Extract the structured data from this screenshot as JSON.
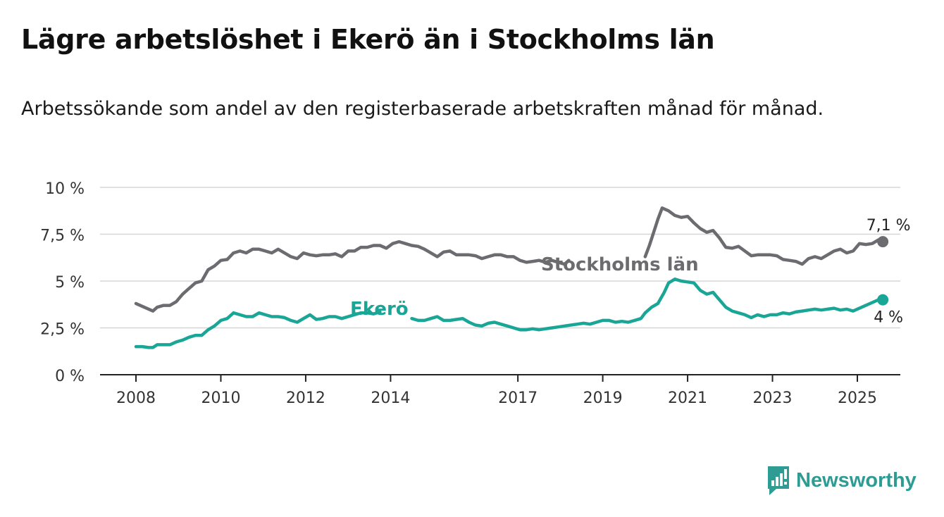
{
  "header": {
    "title": "Lägre arbetslöshet i Ekerö än i Stockholms län",
    "subtitle": "Arbetssökande som andel av den registerbaserade arbetskraften månad för månad."
  },
  "brand": {
    "name": "Newsworthy",
    "icon": "bar-chart-bubble-icon",
    "color": "#2e9c92"
  },
  "chart_data": {
    "type": "line",
    "xlabel": "",
    "ylabel": "",
    "xlim": [
      2007.9,
      2026.0
    ],
    "ylim": [
      0,
      10
    ],
    "grid": true,
    "x_ticks": [
      {
        "value": 2008,
        "label": "2008"
      },
      {
        "value": 2010,
        "label": "2010"
      },
      {
        "value": 2012,
        "label": "2012"
      },
      {
        "value": 2014,
        "label": "2014"
      },
      {
        "value": 2017,
        "label": "2017"
      },
      {
        "value": 2019,
        "label": "2019"
      },
      {
        "value": 2021,
        "label": "2021"
      },
      {
        "value": 2023,
        "label": "2023"
      },
      {
        "value": 2025,
        "label": "2025"
      }
    ],
    "y_ticks": [
      {
        "value": 0,
        "label": "0 %"
      },
      {
        "value": 2.5,
        "label": "2,5 %"
      },
      {
        "value": 5,
        "label": "5 %"
      },
      {
        "value": 7.5,
        "label": "7,5 %"
      },
      {
        "value": 10,
        "label": "10 %"
      }
    ],
    "series": [
      {
        "name": "Stockholms län",
        "color": "#6b6b70",
        "end_label": "7,1 %",
        "points": [
          [
            2008.0,
            3.8
          ],
          [
            2008.15,
            3.65
          ],
          [
            2008.3,
            3.5
          ],
          [
            2008.4,
            3.4
          ],
          [
            2008.5,
            3.6
          ],
          [
            2008.65,
            3.7
          ],
          [
            2008.8,
            3.7
          ],
          [
            2008.95,
            3.9
          ],
          [
            2009.1,
            4.3
          ],
          [
            2009.25,
            4.6
          ],
          [
            2009.4,
            4.9
          ],
          [
            2009.55,
            5.0
          ],
          [
            2009.7,
            5.6
          ],
          [
            2009.85,
            5.8
          ],
          [
            2010.0,
            6.1
          ],
          [
            2010.15,
            6.15
          ],
          [
            2010.3,
            6.5
          ],
          [
            2010.45,
            6.6
          ],
          [
            2010.6,
            6.5
          ],
          [
            2010.75,
            6.7
          ],
          [
            2010.9,
            6.7
          ],
          [
            2011.05,
            6.6
          ],
          [
            2011.2,
            6.5
          ],
          [
            2011.35,
            6.7
          ],
          [
            2011.5,
            6.5
          ],
          [
            2011.65,
            6.3
          ],
          [
            2011.8,
            6.2
          ],
          [
            2011.95,
            6.5
          ],
          [
            2012.1,
            6.4
          ],
          [
            2012.25,
            6.35
          ],
          [
            2012.4,
            6.4
          ],
          [
            2012.55,
            6.4
          ],
          [
            2012.7,
            6.45
          ],
          [
            2012.85,
            6.3
          ],
          [
            2013.0,
            6.6
          ],
          [
            2013.15,
            6.6
          ],
          [
            2013.3,
            6.8
          ],
          [
            2013.45,
            6.8
          ],
          [
            2013.6,
            6.9
          ],
          [
            2013.75,
            6.9
          ],
          [
            2013.9,
            6.75
          ],
          [
            2014.05,
            7.0
          ],
          [
            2014.2,
            7.1
          ],
          [
            2014.35,
            7.0
          ],
          [
            2014.5,
            6.9
          ],
          [
            2014.65,
            6.85
          ],
          [
            2014.8,
            6.7
          ],
          [
            2014.95,
            6.5
          ],
          [
            2015.1,
            6.3
          ],
          [
            2015.25,
            6.55
          ],
          [
            2015.4,
            6.6
          ],
          [
            2015.55,
            6.4
          ],
          [
            2015.7,
            6.4
          ],
          [
            2015.85,
            6.4
          ],
          [
            2016.0,
            6.35
          ],
          [
            2016.15,
            6.2
          ],
          [
            2016.3,
            6.3
          ],
          [
            2016.45,
            6.4
          ],
          [
            2016.6,
            6.4
          ],
          [
            2016.75,
            6.3
          ],
          [
            2016.9,
            6.3
          ],
          [
            2017.05,
            6.1
          ],
          [
            2017.2,
            6.0
          ],
          [
            2017.35,
            6.05
          ],
          [
            2017.5,
            6.1
          ],
          [
            2017.65,
            6.0
          ],
          [
            2017.8,
            6.1
          ],
          [
            2017.95,
            6.0
          ],
          [
            2018.1,
            5.9
          ],
          [
            2018.2,
            6.1
          ]
        ],
        "points_b": [
          [
            2020.0,
            6.3
          ],
          [
            2020.1,
            6.9
          ],
          [
            2020.2,
            7.6
          ],
          [
            2020.3,
            8.3
          ],
          [
            2020.4,
            8.9
          ],
          [
            2020.55,
            8.75
          ],
          [
            2020.7,
            8.5
          ],
          [
            2020.85,
            8.4
          ],
          [
            2021.0,
            8.45
          ],
          [
            2021.15,
            8.1
          ],
          [
            2021.3,
            7.8
          ],
          [
            2021.45,
            7.6
          ],
          [
            2021.6,
            7.7
          ],
          [
            2021.75,
            7.3
          ],
          [
            2021.9,
            6.8
          ],
          [
            2022.05,
            6.75
          ],
          [
            2022.2,
            6.85
          ],
          [
            2022.35,
            6.6
          ],
          [
            2022.5,
            6.35
          ],
          [
            2022.65,
            6.4
          ],
          [
            2022.8,
            6.4
          ],
          [
            2022.95,
            6.4
          ],
          [
            2023.1,
            6.35
          ],
          [
            2023.25,
            6.15
          ],
          [
            2023.4,
            6.1
          ],
          [
            2023.55,
            6.05
          ],
          [
            2023.7,
            5.9
          ],
          [
            2023.85,
            6.2
          ],
          [
            2024.0,
            6.3
          ],
          [
            2024.15,
            6.2
          ],
          [
            2024.3,
            6.4
          ],
          [
            2024.45,
            6.6
          ],
          [
            2024.6,
            6.7
          ],
          [
            2024.75,
            6.5
          ],
          [
            2024.9,
            6.6
          ],
          [
            2025.05,
            7.0
          ],
          [
            2025.2,
            6.95
          ],
          [
            2025.35,
            7.0
          ],
          [
            2025.5,
            7.2
          ],
          [
            2025.6,
            7.1
          ]
        ]
      },
      {
        "name": "Ekerö",
        "color": "#1aa697",
        "end_label": "4 %",
        "points": [
          [
            2008.0,
            1.5
          ],
          [
            2008.15,
            1.5
          ],
          [
            2008.3,
            1.45
          ],
          [
            2008.4,
            1.45
          ],
          [
            2008.5,
            1.6
          ],
          [
            2008.65,
            1.6
          ],
          [
            2008.8,
            1.6
          ],
          [
            2008.95,
            1.75
          ],
          [
            2009.1,
            1.85
          ],
          [
            2009.25,
            2.0
          ],
          [
            2009.4,
            2.1
          ],
          [
            2009.55,
            2.1
          ],
          [
            2009.7,
            2.4
          ],
          [
            2009.85,
            2.6
          ],
          [
            2010.0,
            2.9
          ],
          [
            2010.15,
            3.0
          ],
          [
            2010.3,
            3.3
          ],
          [
            2010.45,
            3.2
          ],
          [
            2010.6,
            3.1
          ],
          [
            2010.75,
            3.1
          ],
          [
            2010.9,
            3.3
          ],
          [
            2011.05,
            3.2
          ],
          [
            2011.2,
            3.1
          ],
          [
            2011.35,
            3.1
          ],
          [
            2011.5,
            3.05
          ],
          [
            2011.65,
            2.9
          ],
          [
            2011.8,
            2.8
          ],
          [
            2011.95,
            3.0
          ],
          [
            2012.1,
            3.2
          ],
          [
            2012.25,
            2.95
          ],
          [
            2012.4,
            3.0
          ],
          [
            2012.55,
            3.1
          ],
          [
            2012.7,
            3.1
          ],
          [
            2012.85,
            3.0
          ],
          [
            2013.0,
            3.1
          ],
          [
            2013.15,
            3.2
          ],
          [
            2013.3,
            3.3
          ],
          [
            2013.45,
            3.3
          ],
          [
            2013.6,
            3.25
          ],
          [
            2013.75,
            3.35
          ]
        ],
        "points_b": [
          [
            2014.5,
            3.0
          ],
          [
            2014.65,
            2.9
          ],
          [
            2014.8,
            2.9
          ],
          [
            2014.95,
            3.0
          ],
          [
            2015.1,
            3.1
          ],
          [
            2015.25,
            2.9
          ],
          [
            2015.4,
            2.9
          ],
          [
            2015.55,
            2.95
          ],
          [
            2015.7,
            3.0
          ],
          [
            2015.85,
            2.8
          ],
          [
            2016.0,
            2.65
          ],
          [
            2016.15,
            2.6
          ],
          [
            2016.3,
            2.75
          ],
          [
            2016.45,
            2.8
          ],
          [
            2016.6,
            2.7
          ],
          [
            2016.75,
            2.6
          ],
          [
            2016.9,
            2.5
          ],
          [
            2017.05,
            2.4
          ],
          [
            2017.2,
            2.4
          ],
          [
            2017.35,
            2.45
          ],
          [
            2017.5,
            2.4
          ],
          [
            2017.65,
            2.45
          ],
          [
            2017.8,
            2.5
          ],
          [
            2017.95,
            2.55
          ],
          [
            2018.1,
            2.6
          ],
          [
            2018.25,
            2.65
          ],
          [
            2018.4,
            2.7
          ],
          [
            2018.55,
            2.75
          ],
          [
            2018.7,
            2.7
          ],
          [
            2018.85,
            2.8
          ],
          [
            2019.0,
            2.9
          ],
          [
            2019.15,
            2.9
          ],
          [
            2019.3,
            2.8
          ],
          [
            2019.45,
            2.85
          ],
          [
            2019.6,
            2.8
          ],
          [
            2019.75,
            2.9
          ],
          [
            2019.9,
            3.0
          ],
          [
            2020.0,
            3.3
          ],
          [
            2020.15,
            3.6
          ],
          [
            2020.3,
            3.8
          ],
          [
            2020.45,
            4.4
          ],
          [
            2020.55,
            4.9
          ],
          [
            2020.7,
            5.1
          ],
          [
            2020.85,
            5.0
          ],
          [
            2021.0,
            4.95
          ],
          [
            2021.15,
            4.9
          ],
          [
            2021.3,
            4.5
          ],
          [
            2021.45,
            4.3
          ],
          [
            2021.6,
            4.4
          ],
          [
            2021.75,
            4.0
          ],
          [
            2021.9,
            3.6
          ],
          [
            2022.05,
            3.4
          ],
          [
            2022.2,
            3.3
          ],
          [
            2022.35,
            3.2
          ],
          [
            2022.5,
            3.05
          ],
          [
            2022.65,
            3.2
          ],
          [
            2022.8,
            3.1
          ],
          [
            2022.95,
            3.2
          ],
          [
            2023.1,
            3.2
          ],
          [
            2023.25,
            3.3
          ],
          [
            2023.4,
            3.25
          ],
          [
            2023.55,
            3.35
          ],
          [
            2023.7,
            3.4
          ],
          [
            2023.85,
            3.45
          ],
          [
            2024.0,
            3.5
          ],
          [
            2024.15,
            3.45
          ],
          [
            2024.3,
            3.5
          ],
          [
            2024.45,
            3.55
          ],
          [
            2024.6,
            3.45
          ],
          [
            2024.75,
            3.5
          ],
          [
            2024.9,
            3.4
          ],
          [
            2025.05,
            3.55
          ],
          [
            2025.2,
            3.7
          ],
          [
            2025.35,
            3.85
          ],
          [
            2025.5,
            4.0
          ],
          [
            2025.6,
            4.0
          ]
        ]
      }
    ],
    "annotations": [
      {
        "text": "Stockholms län",
        "series": "Stockholms län"
      },
      {
        "text": "Ekerö",
        "series": "Ekerö"
      }
    ]
  }
}
